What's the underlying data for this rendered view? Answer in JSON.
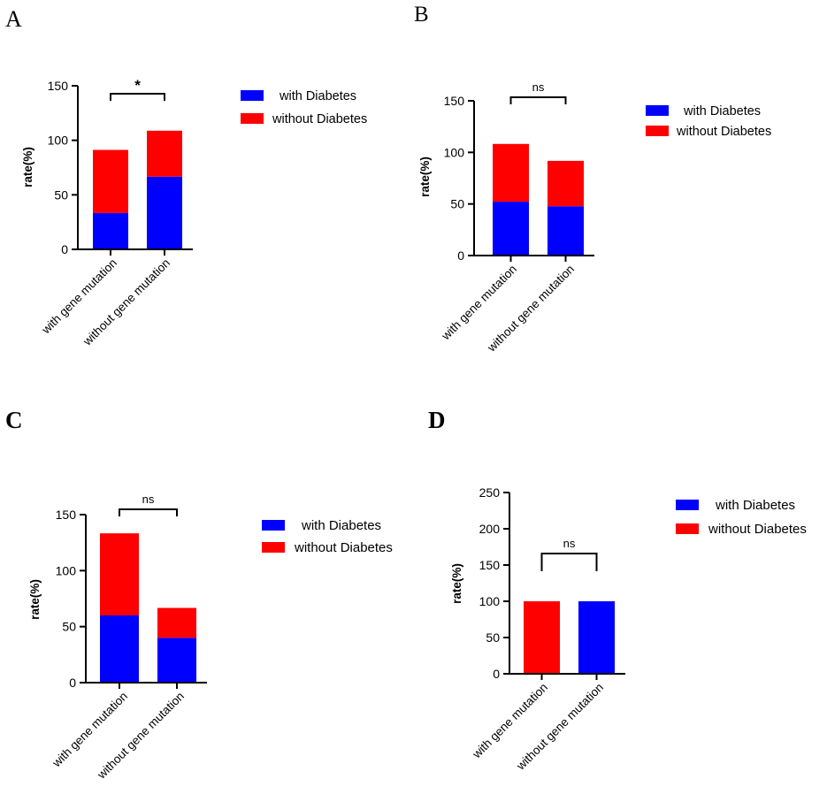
{
  "figure": {
    "colors": {
      "with_diabetes": "#0000ff",
      "without_diabetes": "#ff0000",
      "axis": "#000000"
    }
  },
  "chart_data": [
    {
      "panel": "A",
      "type": "bar",
      "stacked": true,
      "categories": [
        "with gene mutation",
        "without gene mutation"
      ],
      "series": [
        {
          "name": "with Diabetes",
          "values": [
            33.3,
            66.7
          ]
        },
        {
          "name": "without Diabetes",
          "values": [
            57.9,
            42.1
          ]
        }
      ],
      "ylabel": "rate(%)",
      "ylim": [
        0,
        150
      ],
      "yticks": [
        0,
        50,
        100,
        150
      ],
      "legend": [
        "with Diabetes",
        "without Diabetes"
      ],
      "legend_position": "right",
      "significance": "*"
    },
    {
      "panel": "B",
      "type": "bar",
      "stacked": true,
      "categories": [
        "with gene mutation",
        "without gene mutation"
      ],
      "series": [
        {
          "name": "with Diabetes",
          "values": [
            52.2,
            47.8
          ]
        },
        {
          "name": "without Diabetes",
          "values": [
            56.0,
            44.0
          ]
        }
      ],
      "ylabel": "rate(%)",
      "ylim": [
        0,
        150
      ],
      "yticks": [
        0,
        50,
        100,
        150
      ],
      "legend": [
        "with Diabetes",
        "without Diabetes"
      ],
      "legend_position": "right",
      "significance": "ns"
    },
    {
      "panel": "C",
      "type": "bar",
      "stacked": true,
      "categories": [
        "with gene mutation",
        "without gene mutation"
      ],
      "series": [
        {
          "name": "with Diabetes",
          "values": [
            60.0,
            40.0
          ]
        },
        {
          "name": "without Diabetes",
          "values": [
            73.3,
            26.7
          ]
        }
      ],
      "ylabel": "rate(%)",
      "ylim": [
        0,
        150
      ],
      "yticks": [
        0,
        50,
        100,
        150
      ],
      "legend": [
        "with Diabetes",
        "without Diabetes"
      ],
      "legend_position": "right",
      "significance": "ns"
    },
    {
      "panel": "D",
      "type": "bar",
      "stacked": false,
      "categories": [
        "with gene mutation",
        "without gene mutation"
      ],
      "series": [
        {
          "name": "without Diabetes",
          "values": [
            100,
            0
          ]
        },
        {
          "name": "with Diabetes",
          "values": [
            0,
            100
          ]
        }
      ],
      "ylabel": "rate(%)",
      "ylim": [
        0,
        250
      ],
      "yticks": [
        0,
        50,
        100,
        150,
        200,
        250
      ],
      "legend": [
        "with Diabetes",
        "without Diabetes"
      ],
      "legend_position": "right",
      "significance": "ns"
    }
  ]
}
